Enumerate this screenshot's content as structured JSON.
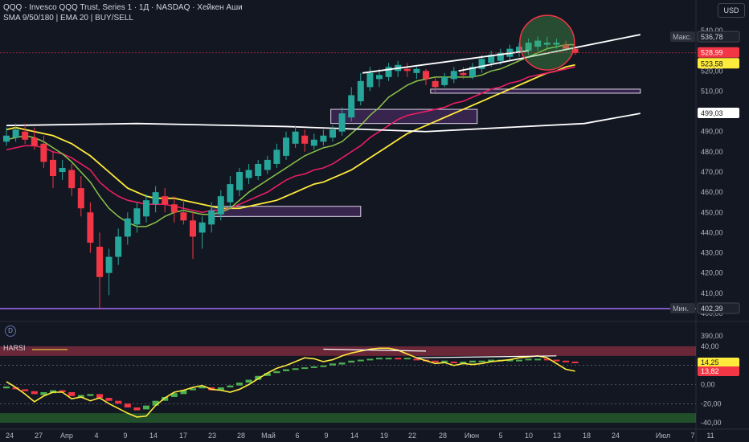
{
  "header": {
    "title": "QQQ · Invesco QQQ Trust, Series 1 · 1Д · NASDAQ · Хейкен Аши",
    "indicators": "SMA 9/50/180 | EMA 20 | BUY/SELL",
    "currency_button": "USD"
  },
  "lower_panel": {
    "logo": "D",
    "label": "HARSI"
  },
  "colors": {
    "background": "#131722",
    "bull": "#26a69a",
    "bear": "#f23645",
    "sma9": "#8bc34a",
    "ema20": "#e91e63",
    "sma50": "#ffeb3b",
    "sma180": "#ffffff",
    "zone": "#7b3f9e",
    "min_line": "#7e57c2"
  },
  "chart_data": [
    {
      "type": "heikin-ashi candlestick",
      "x_tick_labels": [
        "24",
        "27",
        "Апр",
        "4",
        "9",
        "14",
        "17",
        "23",
        "28",
        "Май",
        "6",
        "9",
        "14",
        "19",
        "22",
        "28",
        "Июн",
        "5",
        "10",
        "13",
        "18",
        "24",
        "Июл",
        "7",
        "11"
      ],
      "y_tick_labels": [
        "540,00",
        "530,00",
        "520,00",
        "510,00",
        "500,00",
        "490,00",
        "480,00",
        "470,00",
        "460,00",
        "450,00",
        "440,00",
        "430,00",
        "420,00",
        "410,00",
        "400,00"
      ],
      "ylim": [
        398,
        542
      ],
      "price_labels": [
        {
          "label": "Макс.",
          "value": "536,78"
        },
        {
          "value": "528,99"
        },
        {
          "value": "523,58"
        },
        {
          "value": "499,03"
        },
        {
          "label": "Мин.",
          "value": "402,39"
        }
      ],
      "candles": [
        {
          "o": 485,
          "h": 492,
          "l": 483,
          "c": 488
        },
        {
          "o": 487,
          "h": 494,
          "l": 485,
          "c": 491
        },
        {
          "o": 490,
          "h": 494,
          "l": 484,
          "c": 486
        },
        {
          "o": 487,
          "h": 492,
          "l": 481,
          "c": 483
        },
        {
          "o": 484,
          "h": 488,
          "l": 472,
          "c": 475
        },
        {
          "o": 476,
          "h": 480,
          "l": 462,
          "c": 468
        },
        {
          "o": 470,
          "h": 476,
          "l": 466,
          "c": 472
        },
        {
          "o": 471,
          "h": 474,
          "l": 458,
          "c": 462
        },
        {
          "o": 462,
          "h": 468,
          "l": 448,
          "c": 452
        },
        {
          "o": 450,
          "h": 455,
          "l": 430,
          "c": 435
        },
        {
          "o": 433,
          "h": 440,
          "l": 402,
          "c": 418
        },
        {
          "o": 420,
          "h": 432,
          "l": 409,
          "c": 428
        },
        {
          "o": 428,
          "h": 442,
          "l": 424,
          "c": 438
        },
        {
          "o": 438,
          "h": 450,
          "l": 434,
          "c": 447
        },
        {
          "o": 444,
          "h": 455,
          "l": 440,
          "c": 452
        },
        {
          "o": 448,
          "h": 459,
          "l": 445,
          "c": 456
        },
        {
          "o": 454,
          "h": 463,
          "l": 450,
          "c": 460
        },
        {
          "o": 458,
          "h": 462,
          "l": 450,
          "c": 454
        },
        {
          "o": 454,
          "h": 458,
          "l": 445,
          "c": 450
        },
        {
          "o": 450,
          "h": 456,
          "l": 444,
          "c": 446
        },
        {
          "o": 446,
          "h": 450,
          "l": 427,
          "c": 438
        },
        {
          "o": 440,
          "h": 448,
          "l": 432,
          "c": 445
        },
        {
          "o": 444,
          "h": 455,
          "l": 440,
          "c": 451
        },
        {
          "o": 449,
          "h": 461,
          "l": 446,
          "c": 458
        },
        {
          "o": 455,
          "h": 468,
          "l": 452,
          "c": 464
        },
        {
          "o": 461,
          "h": 472,
          "l": 458,
          "c": 470
        },
        {
          "o": 467,
          "h": 474,
          "l": 464,
          "c": 471
        },
        {
          "o": 468,
          "h": 476,
          "l": 466,
          "c": 474
        },
        {
          "o": 471,
          "h": 478,
          "l": 469,
          "c": 476
        },
        {
          "o": 474,
          "h": 484,
          "l": 472,
          "c": 481
        },
        {
          "o": 478,
          "h": 490,
          "l": 476,
          "c": 487
        },
        {
          "o": 484,
          "h": 493,
          "l": 482,
          "c": 490
        },
        {
          "o": 488,
          "h": 491,
          "l": 480,
          "c": 484
        },
        {
          "o": 483,
          "h": 489,
          "l": 481,
          "c": 486
        },
        {
          "o": 485,
          "h": 491,
          "l": 483,
          "c": 488
        },
        {
          "o": 487,
          "h": 493,
          "l": 485,
          "c": 491
        },
        {
          "o": 490,
          "h": 502,
          "l": 488,
          "c": 499
        },
        {
          "o": 497,
          "h": 512,
          "l": 495,
          "c": 508
        },
        {
          "o": 505,
          "h": 519,
          "l": 503,
          "c": 515
        },
        {
          "o": 512,
          "h": 522,
          "l": 510,
          "c": 519
        },
        {
          "o": 516,
          "h": 521,
          "l": 512,
          "c": 518
        },
        {
          "o": 517,
          "h": 524,
          "l": 515,
          "c": 522
        },
        {
          "o": 520,
          "h": 525,
          "l": 517,
          "c": 523
        },
        {
          "o": 521,
          "h": 524,
          "l": 517,
          "c": 520
        },
        {
          "o": 519,
          "h": 522,
          "l": 516,
          "c": 521
        },
        {
          "o": 520,
          "h": 521,
          "l": 513,
          "c": 516
        },
        {
          "o": 515,
          "h": 517,
          "l": 509,
          "c": 512
        },
        {
          "o": 513,
          "h": 519,
          "l": 512,
          "c": 517
        },
        {
          "o": 516,
          "h": 522,
          "l": 514,
          "c": 520
        },
        {
          "o": 519,
          "h": 522,
          "l": 516,
          "c": 518
        },
        {
          "o": 517,
          "h": 524,
          "l": 516,
          "c": 522
        },
        {
          "o": 521,
          "h": 528,
          "l": 519,
          "c": 526
        },
        {
          "o": 524,
          "h": 530,
          "l": 522,
          "c": 528
        },
        {
          "o": 525,
          "h": 531,
          "l": 523,
          "c": 529
        },
        {
          "o": 527,
          "h": 533,
          "l": 525,
          "c": 531
        },
        {
          "o": 529,
          "h": 534,
          "l": 527,
          "c": 532
        },
        {
          "o": 530,
          "h": 536,
          "l": 528,
          "c": 534
        },
        {
          "o": 532,
          "h": 537,
          "l": 530,
          "c": 535
        },
        {
          "o": 533,
          "h": 537,
          "l": 531,
          "c": 534
        },
        {
          "o": 533,
          "h": 536,
          "l": 531,
          "c": 534
        },
        {
          "o": 533,
          "h": 535,
          "l": 530,
          "c": 531
        },
        {
          "o": 531,
          "h": 532,
          "l": 528,
          "c": 529
        }
      ],
      "ema20": [
        481,
        482,
        483,
        483,
        482,
        480,
        479,
        477,
        474,
        471,
        465,
        461,
        458,
        456,
        455,
        454,
        454,
        454,
        453,
        452,
        451,
        450,
        451,
        451,
        452,
        454,
        456,
        458,
        460,
        463,
        466,
        468,
        469,
        471,
        472,
        474,
        477,
        480,
        483,
        487,
        490,
        493,
        496,
        498,
        499,
        500,
        501,
        502,
        504,
        505,
        507,
        509,
        511,
        512,
        514,
        515,
        517,
        518,
        519,
        520,
        521,
        522
      ],
      "sma9": [
        486,
        487,
        488,
        487,
        485,
        482,
        479,
        475,
        470,
        465,
        458,
        452,
        448,
        445,
        443,
        443,
        445,
        448,
        450,
        451,
        450,
        449,
        449,
        450,
        452,
        456,
        460,
        463,
        466,
        469,
        472,
        475,
        478,
        480,
        482,
        483,
        485,
        489,
        493,
        498,
        502,
        507,
        510,
        513,
        515,
        516,
        517,
        517,
        517,
        517,
        517,
        518,
        520,
        521,
        523,
        525,
        527,
        529,
        531,
        532,
        533,
        533
      ],
      "sma50": [
        491,
        492,
        491,
        490,
        489,
        488,
        486,
        484,
        481,
        478,
        474,
        470,
        466,
        462,
        460,
        458,
        457,
        457,
        457,
        456,
        455,
        454,
        453,
        452,
        452,
        452,
        453,
        454,
        455,
        456,
        458,
        460,
        462,
        464,
        465,
        467,
        469,
        471,
        474,
        477,
        480,
        483,
        486,
        489,
        491,
        493,
        495,
        497,
        499,
        501,
        503,
        505,
        507,
        509,
        511,
        513,
        515,
        517,
        519,
        520,
        522,
        523
      ],
      "sma180": [
        {
          "x": 0,
          "y": 493
        },
        {
          "x": 14,
          "y": 494
        },
        {
          "x": 30,
          "y": 492.5
        },
        {
          "x": 45,
          "y": 490
        },
        {
          "x": 62,
          "y": 494
        },
        {
          "x": 68,
          "y": 499
        }
      ],
      "trendlines": [
        {
          "from": {
            "x": 38.2,
            "y": 519
          },
          "to": {
            "x": 56,
            "y": 530
          }
        },
        {
          "from": {
            "x": 48.5,
            "y": 520
          },
          "to": {
            "x": 68,
            "y": 538
          }
        }
      ],
      "zones": [
        {
          "x0": 22,
          "x1": 38,
          "y0": 448,
          "y1": 453
        },
        {
          "x0": 34.8,
          "x1": 50.5,
          "y0": 494,
          "y1": 501
        },
        {
          "x0": 45.5,
          "x1": 68,
          "y0": 509,
          "y1": 511
        }
      ],
      "min_line": 402.39
    },
    {
      "type": "bar",
      "name": "HARSI",
      "y_tick_labels": [
        "40,00",
        "20,00",
        "0,00",
        "-20,00",
        "-40,00"
      ],
      "ylim": [
        -45,
        45
      ],
      "price_labels": [
        "14,25",
        "13,82"
      ],
      "bands": [
        {
          "y0": 30,
          "y1": 40
        },
        {
          "y0": -40,
          "y1": -30
        }
      ],
      "bars": [
        {
          "o": -4,
          "c": -2
        },
        {
          "o": -3,
          "c": -5
        },
        {
          "o": -5,
          "c": -7
        },
        {
          "o": -7,
          "c": -10
        },
        {
          "o": -11,
          "c": -8
        },
        {
          "o": -9,
          "c": -6
        },
        {
          "o": -6,
          "c": -8
        },
        {
          "o": -8,
          "c": -12
        },
        {
          "o": -14,
          "c": -11
        },
        {
          "o": -12,
          "c": -10
        },
        {
          "o": -10,
          "c": -14
        },
        {
          "o": -14,
          "c": -17
        },
        {
          "o": -17,
          "c": -20
        },
        {
          "o": -20,
          "c": -24
        },
        {
          "o": -24,
          "c": -27
        },
        {
          "o": -26,
          "c": -22
        },
        {
          "o": -22,
          "c": -17
        },
        {
          "o": -17,
          "c": -13
        },
        {
          "o": -13,
          "c": -9
        },
        {
          "o": -10,
          "c": -6
        },
        {
          "o": -6,
          "c": -4
        },
        {
          "o": -4,
          "c": -2
        },
        {
          "o": -3,
          "c": -6
        },
        {
          "o": -6,
          "c": -3
        },
        {
          "o": -3,
          "c": -1
        },
        {
          "o": -1,
          "c": 2
        },
        {
          "o": 2,
          "c": 5
        },
        {
          "o": 5,
          "c": 9
        },
        {
          "o": 9,
          "c": 12
        },
        {
          "o": 12,
          "c": 14
        },
        {
          "o": 14,
          "c": 16
        },
        {
          "o": 16,
          "c": 17
        },
        {
          "o": 17,
          "c": 18
        },
        {
          "o": 18,
          "c": 19
        },
        {
          "o": 19,
          "c": 20
        },
        {
          "o": 20,
          "c": 22
        },
        {
          "o": 21,
          "c": 23
        },
        {
          "o": 23,
          "c": 25
        },
        {
          "o": 25,
          "c": 26
        },
        {
          "o": 26,
          "c": 27
        },
        {
          "o": 27,
          "c": 28
        },
        {
          "o": 28,
          "c": 28
        },
        {
          "o": 28,
          "c": 27
        },
        {
          "o": 27,
          "c": 28
        },
        {
          "o": 27,
          "c": 26
        },
        {
          "o": 26,
          "c": 25
        },
        {
          "o": 25,
          "c": 24
        },
        {
          "o": 24,
          "c": 25
        },
        {
          "o": 24,
          "c": 23
        },
        {
          "o": 23,
          "c": 24
        },
        {
          "o": 23,
          "c": 25
        },
        {
          "o": 24,
          "c": 25
        },
        {
          "o": 24,
          "c": 26
        },
        {
          "o": 25,
          "c": 26
        },
        {
          "o": 25,
          "c": 26
        },
        {
          "o": 25,
          "c": 26
        },
        {
          "o": 26,
          "c": 27
        },
        {
          "o": 26,
          "c": 27
        },
        {
          "o": 27,
          "c": 26
        },
        {
          "o": 26,
          "c": 25
        },
        {
          "o": 25,
          "c": 24
        },
        {
          "o": 24,
          "c": 23
        }
      ],
      "rsi": [
        3,
        -3,
        -10,
        -18,
        -12,
        -8,
        -8,
        -15,
        -13,
        -17,
        -14,
        -20,
        -25,
        -30,
        -34,
        -33,
        -22,
        -14,
        -8,
        -6,
        -3,
        -1,
        -5,
        -6,
        -8,
        -5,
        0,
        6,
        12,
        17,
        20,
        24,
        28,
        27,
        24,
        26,
        30,
        33,
        35,
        37,
        38,
        38,
        36,
        32,
        28,
        25,
        22,
        23,
        20,
        22,
        21,
        22,
        24,
        25,
        26,
        28,
        29,
        30,
        28,
        22,
        16,
        14
      ],
      "trendlines": [
        {
          "from": {
            "x": 34,
            "y": 37
          },
          "to": {
            "x": 45,
            "y": 35
          }
        },
        {
          "from": {
            "x": 44,
            "y": 28
          },
          "to": {
            "x": 59,
            "y": 30
          }
        }
      ]
    }
  ]
}
